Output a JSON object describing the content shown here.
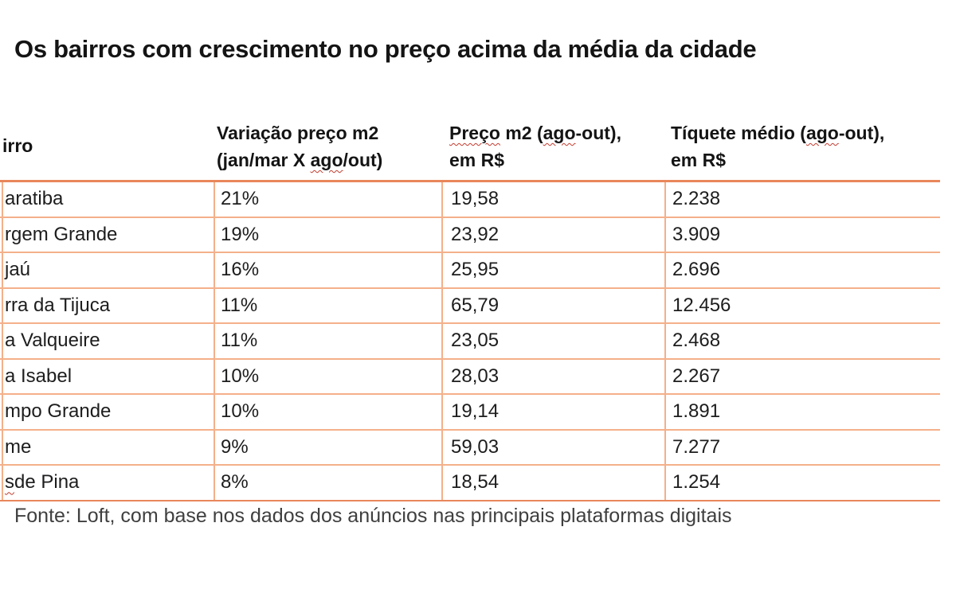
{
  "title": "Os bairros com crescimento no preço acima da média da cidade",
  "table": {
    "header": {
      "col1_visible": "irro",
      "col2_line1": "Variação preço m2",
      "col2_line2_pre": "(jan/mar X ",
      "col2_line2_wavy": "ago",
      "col2_line2_post": "/out)",
      "col3_line1_wavy1": "Preço",
      "col3_line1_mid": " m2 (",
      "col3_line1_wavy2": "ago",
      "col3_line1_post": "-out),",
      "col3_line2": "em R$",
      "col4_line1_pre": "Tíquete médio (",
      "col4_line1_wavy": "ago",
      "col4_line1_post": "-out),",
      "col4_line2": "em R$"
    },
    "rows": [
      {
        "name_wavy": "",
        "name": "aratiba",
        "variation": "21%",
        "price_m2": "19,58",
        "ticket": "2.238"
      },
      {
        "name_wavy": "",
        "name": "rgem Grande",
        "variation": "19%",
        "price_m2": "23,92",
        "ticket": "3.909"
      },
      {
        "name_wavy": "",
        "name": "jaú",
        "variation": "16%",
        "price_m2": "25,95",
        "ticket": "2.696"
      },
      {
        "name_wavy": "",
        "name": "rra da Tijuca",
        "variation": "11%",
        "price_m2": "65,79",
        "ticket": "12.456"
      },
      {
        "name_wavy": "",
        "name": "a Valqueire",
        "variation": "11%",
        "price_m2": "23,05",
        "ticket": "2.468"
      },
      {
        "name_wavy": "",
        "name": "a Isabel",
        "variation": "10%",
        "price_m2": "28,03",
        "ticket": "2.267"
      },
      {
        "name_wavy": "",
        "name": "mpo Grande",
        "variation": "10%",
        "price_m2": "19,14",
        "ticket": "1.891"
      },
      {
        "name_wavy": "",
        "name": "me",
        "variation": "9%",
        "price_m2": "59,03",
        "ticket": "7.277"
      },
      {
        "name_wavy": "s",
        "name": " de Pina",
        "variation": "8%",
        "price_m2": "18,54",
        "ticket": "1.254"
      }
    ]
  },
  "source_note": "Fonte: Loft, com base nos dados dos anúncios nas principais plataformas digitais",
  "colors": {
    "border_light": "#f4b08a",
    "border_strong": "#e8875b",
    "spellcheck_red": "#c23b2e",
    "title_text": "#141414",
    "body_text": "#1d1d1d",
    "source_text": "#3f3f3f"
  },
  "chart_data": {
    "type": "table",
    "title": "Os bairros com crescimento no preço acima da média da cidade",
    "columns": [
      "irro",
      "Variação preço m2 (jan/mar X ago/out)",
      "Preço m2 (ago-out), em R$",
      "Tíquete médio (ago-out), em R$"
    ],
    "rows": [
      [
        "aratiba",
        "21%",
        "19,58",
        "2.238"
      ],
      [
        "rgem Grande",
        "19%",
        "23,92",
        "3.909"
      ],
      [
        "jaú",
        "16%",
        "25,95",
        "2.696"
      ],
      [
        "rra da Tijuca",
        "11%",
        "65,79",
        "12.456"
      ],
      [
        "a Valqueire",
        "11%",
        "23,05",
        "2.468"
      ],
      [
        "a Isabel",
        "10%",
        "28,03",
        "2.267"
      ],
      [
        "mpo Grande",
        "10%",
        "19,14",
        "1.891"
      ],
      [
        "me",
        "9%",
        "59,03",
        "7.277"
      ],
      [
        "s de Pina",
        "8%",
        "18,54",
        "1.254"
      ]
    ],
    "source": "Fonte: Loft, com base nos dados dos anúncios nas principais plataformas digitais"
  }
}
